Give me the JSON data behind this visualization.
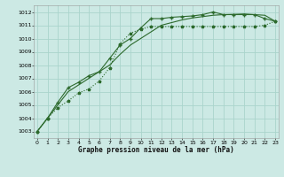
{
  "title": "Graphe pression niveau de la mer (hPa)",
  "bg_color": "#cce9e4",
  "grid_color": "#aad4cc",
  "line_color": "#2d6a2d",
  "x_ticks": [
    0,
    1,
    2,
    3,
    4,
    5,
    6,
    7,
    8,
    9,
    10,
    11,
    12,
    13,
    14,
    15,
    16,
    17,
    18,
    19,
    20,
    21,
    22,
    23
  ],
  "y_ticks": [
    1003,
    1004,
    1005,
    1006,
    1007,
    1008,
    1009,
    1010,
    1011,
    1012
  ],
  "ylim": [
    1002.5,
    1012.5
  ],
  "xlim": [
    -0.3,
    23.3
  ],
  "series1_x": [
    0,
    1,
    2,
    3,
    4,
    5,
    6,
    7,
    8,
    9,
    10,
    11,
    12,
    13,
    14,
    15,
    16,
    17,
    18,
    19,
    20,
    21,
    22,
    23
  ],
  "series1_y": [
    1003.0,
    1004.0,
    1004.8,
    1005.3,
    1005.9,
    1006.2,
    1006.8,
    1007.8,
    1009.6,
    1010.4,
    1010.7,
    1010.9,
    1010.9,
    1010.9,
    1010.9,
    1010.9,
    1010.9,
    1010.9,
    1010.9,
    1010.9,
    1010.9,
    1010.9,
    1011.0,
    1011.3
  ],
  "series2_x": [
    0,
    1,
    2,
    3,
    4,
    5,
    6,
    7,
    8,
    9,
    10,
    11,
    12,
    13,
    14,
    15,
    16,
    17,
    18,
    19,
    20,
    21,
    22,
    23
  ],
  "series2_y": [
    1003.0,
    1004.0,
    1005.2,
    1006.3,
    1006.7,
    1007.2,
    1007.5,
    1008.5,
    1009.5,
    1010.0,
    1010.8,
    1011.5,
    1011.5,
    1011.6,
    1011.65,
    1011.7,
    1011.8,
    1012.0,
    1011.8,
    1011.8,
    1011.8,
    1011.8,
    1011.5,
    1011.3
  ],
  "series3_x": [
    0,
    1,
    2,
    3,
    4,
    5,
    6,
    7,
    8,
    9,
    10,
    11,
    12,
    13,
    14,
    15,
    16,
    17,
    18,
    19,
    20,
    21,
    22,
    23
  ],
  "series3_y": [
    1003.0,
    1004.0,
    1005.0,
    1006.0,
    1006.5,
    1007.0,
    1007.5,
    1008.0,
    1008.8,
    1009.5,
    1010.0,
    1010.5,
    1011.0,
    1011.2,
    1011.4,
    1011.55,
    1011.65,
    1011.75,
    1011.8,
    1011.82,
    1011.85,
    1011.8,
    1011.75,
    1011.3
  ],
  "figwidth": 3.2,
  "figheight": 2.0,
  "dpi": 100
}
